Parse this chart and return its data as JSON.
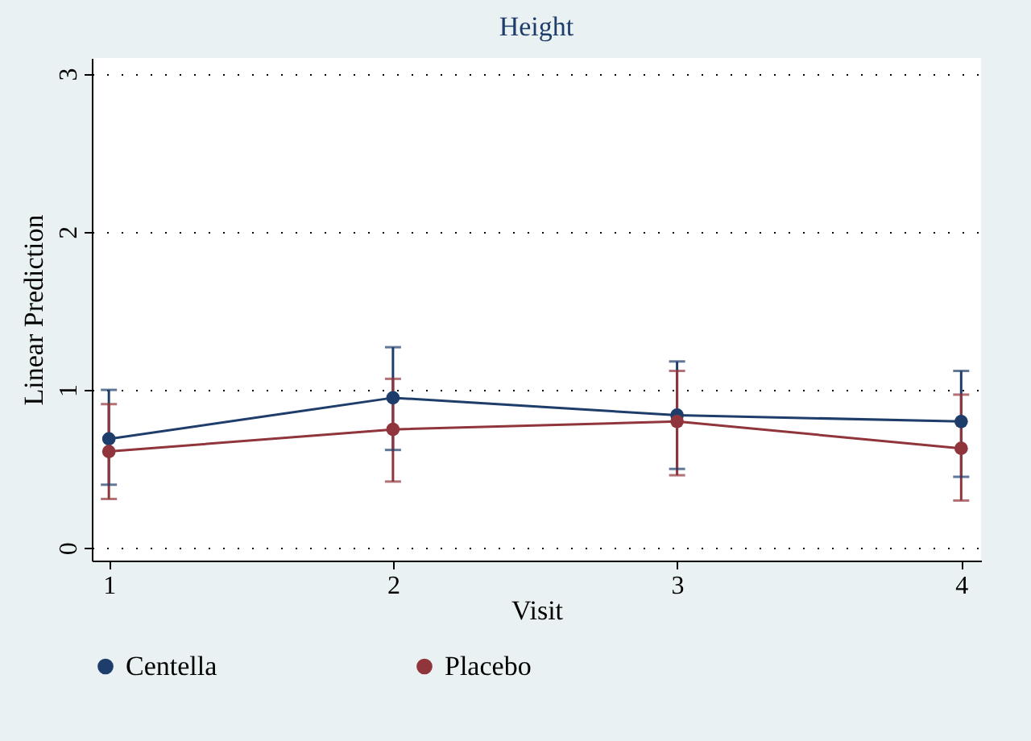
{
  "chart_data": {
    "type": "line",
    "title": "Height",
    "xlabel": "Visit",
    "ylabel": "Linear Prediction",
    "x": [
      1,
      2,
      3,
      4
    ],
    "series": [
      {
        "name": "Centella",
        "color": "#1f3d6b",
        "values": [
          0.69,
          0.95,
          0.84,
          0.8
        ],
        "errors": [
          [
            0.4,
            1.0
          ],
          [
            0.62,
            1.27
          ],
          [
            0.5,
            1.18
          ],
          [
            0.45,
            1.12
          ]
        ]
      },
      {
        "name": "Placebo",
        "color": "#90353b",
        "values": [
          0.61,
          0.75,
          0.8,
          0.63
        ],
        "errors": [
          [
            0.31,
            0.91
          ],
          [
            0.42,
            1.07
          ],
          [
            0.46,
            1.12
          ],
          [
            0.3,
            0.97
          ]
        ]
      }
    ],
    "xlim": [
      0.94,
      4.07
    ],
    "ylim": [
      -0.08,
      3.1
    ],
    "xticks": [
      1,
      2,
      3,
      4
    ],
    "yticks": [
      0,
      1,
      2,
      3
    ],
    "grid": "y",
    "legend": "bottom",
    "marker": "circle",
    "line_style": "solid"
  }
}
